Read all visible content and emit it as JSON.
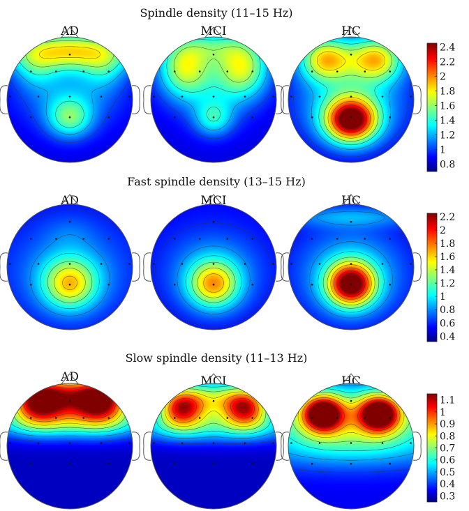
{
  "panels": [
    {
      "title": "Spindle density (11–15 Hz)",
      "heads": [
        {
          "label": "AD",
          "base": 0.85,
          "blobs": [
            {
              "cx": 0.0,
              "cy": -0.78,
              "sx": 0.7,
              "sy": 0.22,
              "a": 0.95
            },
            {
              "cx": 0.0,
              "cy": 0.3,
              "sx": 0.25,
              "sy": 0.22,
              "a": 0.55
            },
            {
              "cx": 0.0,
              "cy": -0.05,
              "sx": 0.55,
              "sy": 0.35,
              "a": 0.3
            },
            {
              "cx": -0.55,
              "cy": -0.5,
              "sx": 0.25,
              "sy": 0.25,
              "a": 0.3
            },
            {
              "cx": 0.55,
              "cy": -0.5,
              "sx": 0.25,
              "sy": 0.25,
              "a": 0.3
            }
          ]
        },
        {
          "label": "MCI",
          "base": 0.85,
          "blobs": [
            {
              "cx": -0.45,
              "cy": -0.55,
              "sx": 0.3,
              "sy": 0.35,
              "a": 0.85
            },
            {
              "cx": 0.45,
              "cy": -0.55,
              "sx": 0.3,
              "sy": 0.35,
              "a": 0.85
            },
            {
              "cx": 0.0,
              "cy": -0.85,
              "sx": 0.3,
              "sy": 0.18,
              "a": 0.3
            },
            {
              "cx": 0.0,
              "cy": 0.3,
              "sx": 0.22,
              "sy": 0.2,
              "a": 0.45
            },
            {
              "cx": 0.0,
              "cy": -0.1,
              "sx": 0.45,
              "sy": 0.35,
              "a": 0.2
            }
          ]
        },
        {
          "label": "HC",
          "base": 0.85,
          "blobs": [
            {
              "cx": -0.4,
              "cy": -0.65,
              "sx": 0.3,
              "sy": 0.25,
              "a": 0.95
            },
            {
              "cx": 0.4,
              "cy": -0.65,
              "sx": 0.3,
              "sy": 0.25,
              "a": 0.95
            },
            {
              "cx": 0.0,
              "cy": 0.33,
              "sx": 0.28,
              "sy": 0.24,
              "a": 1.5
            },
            {
              "cx": 0.0,
              "cy": 0.05,
              "sx": 0.6,
              "sy": 0.45,
              "a": 0.45
            }
          ]
        }
      ],
      "colorbar": {
        "min": 0.7,
        "max": 2.45,
        "ticks": [
          "2.4",
          "2.2",
          "2",
          "1.8",
          "1.6",
          "1.4",
          "1.2",
          "1",
          "0.8"
        ],
        "tick_values": [
          2.4,
          2.2,
          2.0,
          1.8,
          1.6,
          1.4,
          1.2,
          1.0,
          0.8
        ]
      }
    },
    {
      "title": "Fast spindle density (13–15 Hz)",
      "heads": [
        {
          "label": "AD",
          "base": 0.55,
          "blobs": [
            {
              "cx": 0.0,
              "cy": 0.28,
              "sx": 0.3,
              "sy": 0.28,
              "a": 0.85
            },
            {
              "cx": 0.0,
              "cy": 0.05,
              "sx": 0.6,
              "sy": 0.45,
              "a": 0.3
            },
            {
              "cx": 0.0,
              "cy": -0.55,
              "sx": 0.3,
              "sy": 0.2,
              "a": 0.1
            }
          ]
        },
        {
          "label": "MCI",
          "base": 0.52,
          "blobs": [
            {
              "cx": 0.0,
              "cy": 0.28,
              "sx": 0.28,
              "sy": 0.26,
              "a": 0.95
            },
            {
              "cx": 0.0,
              "cy": 0.05,
              "sx": 0.55,
              "sy": 0.45,
              "a": 0.32
            }
          ]
        },
        {
          "label": "HC",
          "base": 0.5,
          "blobs": [
            {
              "cx": 0.0,
              "cy": 0.28,
              "sx": 0.26,
              "sy": 0.24,
              "a": 1.6
            },
            {
              "cx": 0.0,
              "cy": 0.1,
              "sx": 0.6,
              "sy": 0.5,
              "a": 0.45
            },
            {
              "cx": 0.0,
              "cy": -0.8,
              "sx": 0.8,
              "sy": 0.12,
              "a": 0.3
            }
          ]
        }
      ],
      "colorbar": {
        "min": 0.32,
        "max": 2.25,
        "ticks": [
          "2.2",
          "2",
          "1.8",
          "1.6",
          "1.4",
          "1.2",
          "1",
          "0.8",
          "0.6",
          "0.4"
        ],
        "tick_values": [
          2.2,
          2.0,
          1.8,
          1.6,
          1.4,
          1.2,
          1.0,
          0.8,
          0.6,
          0.4
        ]
      }
    },
    {
      "title": "Slow spindle density (11–13 Hz)",
      "heads": [
        {
          "label": "AD",
          "base": 0.3,
          "blobs": [
            {
              "cx": -0.5,
              "cy": -0.72,
              "sx": 0.32,
              "sy": 0.25,
              "a": 0.7
            },
            {
              "cx": 0.5,
              "cy": -0.72,
              "sx": 0.32,
              "sy": 0.25,
              "a": 0.7
            },
            {
              "cx": 0.0,
              "cy": -0.8,
              "sx": 0.5,
              "sy": 0.25,
              "a": 0.45
            },
            {
              "cx": 0.0,
              "cy": -0.35,
              "sx": 1.2,
              "sy": 0.18,
              "a": 0.25
            }
          ]
        },
        {
          "label": "MCI",
          "base": 0.3,
          "blobs": [
            {
              "cx": -0.52,
              "cy": -0.62,
              "sx": 0.26,
              "sy": 0.22,
              "a": 0.65
            },
            {
              "cx": 0.52,
              "cy": -0.62,
              "sx": 0.26,
              "sy": 0.22,
              "a": 0.65
            },
            {
              "cx": 0.0,
              "cy": -0.75,
              "sx": 0.4,
              "sy": 0.22,
              "a": 0.35
            },
            {
              "cx": 0.0,
              "cy": -0.3,
              "sx": 1.2,
              "sy": 0.18,
              "a": 0.25
            }
          ]
        },
        {
          "label": "HC",
          "base": 0.34,
          "blobs": [
            {
              "cx": -0.45,
              "cy": -0.52,
              "sx": 0.22,
              "sy": 0.2,
              "a": 0.7
            },
            {
              "cx": 0.45,
              "cy": -0.52,
              "sx": 0.22,
              "sy": 0.2,
              "a": 0.7
            },
            {
              "cx": 0.0,
              "cy": -0.45,
              "sx": 1.1,
              "sy": 0.35,
              "a": 0.42
            },
            {
              "cx": 0.0,
              "cy": 0.05,
              "sx": 1.2,
              "sy": 0.25,
              "a": 0.12
            }
          ]
        }
      ],
      "colorbar": {
        "min": 0.25,
        "max": 1.15,
        "ticks": [
          "1.1",
          "1",
          "0.9",
          "0.8",
          "0.7",
          "0.6",
          "0.5",
          "0.4",
          "0.3"
        ],
        "tick_values": [
          1.1,
          1.0,
          0.9,
          0.8,
          0.7,
          0.6,
          0.5,
          0.4,
          0.3
        ]
      }
    }
  ],
  "electrodes": [
    [
      -0.62,
      -0.45
    ],
    [
      -0.22,
      -0.45
    ],
    [
      0.22,
      -0.45
    ],
    [
      0.62,
      -0.45
    ],
    [
      -0.95,
      -0.05
    ],
    [
      -0.5,
      -0.05
    ],
    [
      0.0,
      -0.05
    ],
    [
      0.5,
      -0.05
    ],
    [
      0.95,
      -0.05
    ],
    [
      -0.62,
      0.28
    ],
    [
      0.0,
      0.28
    ],
    [
      0.62,
      0.28
    ],
    [
      0.0,
      -0.72
    ]
  ],
  "colors": {
    "outline": "#555555",
    "contour": "#333333",
    "electrode": "#111111"
  }
}
